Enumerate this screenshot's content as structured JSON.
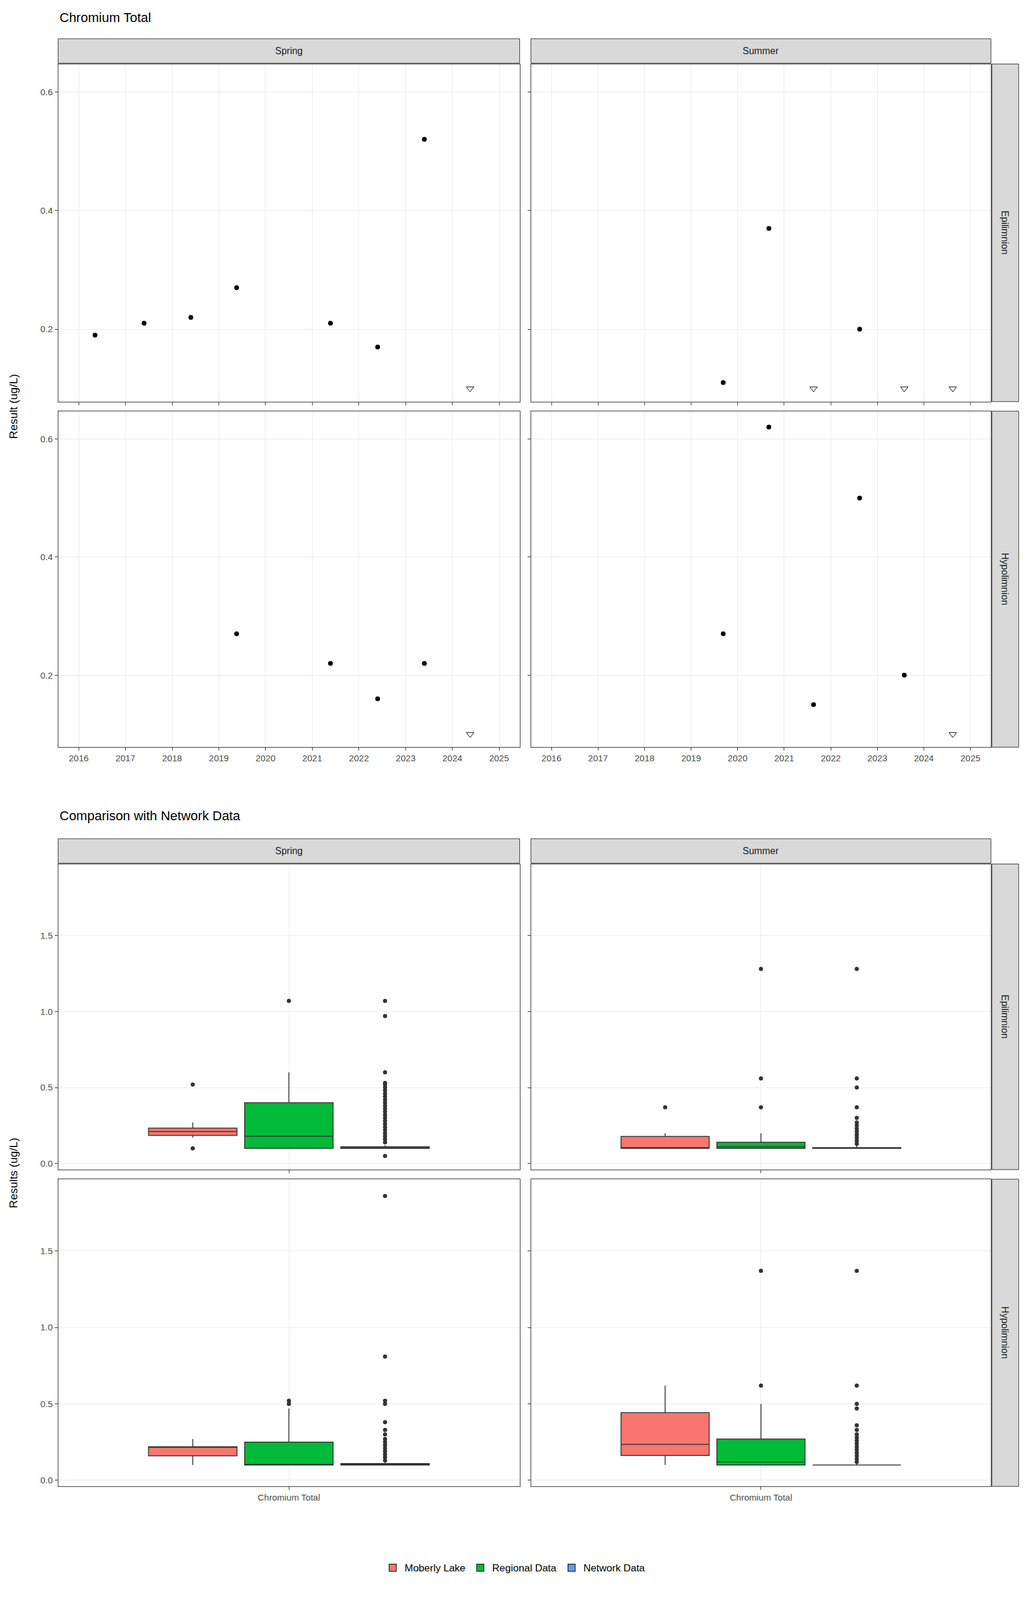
{
  "chart_data": [
    {
      "type": "scatter",
      "title": "Chromium Total",
      "y_label": "Result (ug/L)",
      "columns": [
        "Spring",
        "Summer"
      ],
      "rows": [
        "Epilimnion",
        "Hypolimnion"
      ],
      "xlim": [
        2015.56,
        2025.44
      ],
      "xticks": [
        2016,
        2017,
        2018,
        2019,
        2020,
        2021,
        2022,
        2023,
        2024,
        2025
      ],
      "ylim": [
        0.078,
        0.647
      ],
      "yticks": [
        0.2,
        0.4,
        0.6
      ],
      "grid": true,
      "panels": [
        {
          "column": "Spring",
          "row": "Epilimnion",
          "series": [
            {
              "marker": "circle",
              "color": "#000000",
              "x": [
                2016.35,
                2017.4,
                2018.4,
                2019.38,
                2021.39,
                2022.4,
                2023.4
              ],
              "values": [
                0.19,
                0.21,
                0.22,
                0.27,
                0.21,
                0.17,
                0.52
              ]
            },
            {
              "marker": "triangle-down-open",
              "color": "#000000",
              "x": [
                2024.38
              ],
              "values": [
                0.1
              ]
            }
          ]
        },
        {
          "column": "Summer",
          "row": "Epilimnion",
          "series": [
            {
              "marker": "circle",
              "color": "#000000",
              "x": [
                2019.69,
                2020.67,
                2022.62
              ],
              "values": [
                0.11,
                0.37,
                0.2
              ]
            },
            {
              "marker": "triangle-down-open",
              "color": "#000000",
              "x": [
                2021.63,
                2023.58,
                2024.62
              ],
              "values": [
                0.1,
                0.1,
                0.1
              ]
            }
          ]
        },
        {
          "column": "Spring",
          "row": "Hypolimnion",
          "series": [
            {
              "marker": "circle",
              "color": "#000000",
              "x": [
                2019.38,
                2021.39,
                2022.4,
                2023.4
              ],
              "values": [
                0.27,
                0.22,
                0.16,
                0.22
              ]
            },
            {
              "marker": "triangle-down-open",
              "color": "#000000",
              "x": [
                2024.38
              ],
              "values": [
                0.1
              ]
            }
          ]
        },
        {
          "column": "Summer",
          "row": "Hypolimnion",
          "series": [
            {
              "marker": "circle",
              "color": "#000000",
              "x": [
                2019.69,
                2020.67,
                2021.63,
                2022.62,
                2023.58
              ],
              "values": [
                0.27,
                0.62,
                0.15,
                0.5,
                0.2
              ]
            },
            {
              "marker": "triangle-down-open",
              "color": "#000000",
              "x": [
                2024.62
              ],
              "values": [
                0.1
              ]
            }
          ]
        }
      ]
    },
    {
      "type": "box",
      "title": "Comparison with Network Data",
      "y_label": "Results (ug/L)",
      "categories": [
        "Chromium Total"
      ],
      "columns": [
        "Spring",
        "Summer"
      ],
      "rows": [
        "Epilimnion",
        "Hypolimnion"
      ],
      "ylim": [
        -0.04,
        1.97
      ],
      "yticks": [
        {
          "value": 0,
          "label": "0.0"
        },
        0.5,
        {
          "value": 1,
          "label": "1.0"
        },
        1.5
      ],
      "grid": true,
      "legend": "bottom",
      "series": [
        {
          "name": "Moberly Lake",
          "color": "#F8766D"
        },
        {
          "name": "Regional Data",
          "color": "#00BA38"
        },
        {
          "name": "Network Data",
          "color": "#619CFF"
        }
      ],
      "panels": [
        {
          "column": "Spring",
          "row": "Epilimnion",
          "boxes": [
            {
              "series": "Moberly Lake",
              "q1": 0.185,
              "median": 0.21,
              "q3": 0.2325,
              "lower": 0.17,
              "upper": 0.27,
              "outliers": [
                0.1,
                0.52
              ]
            },
            {
              "series": "Regional Data",
              "q1": 0.1,
              "median": 0.18,
              "q3": 0.4,
              "lower": 0.1,
              "upper": 0.6,
              "outliers": [
                1.07
              ]
            },
            {
              "series": "Network Data",
              "q1": 0.1,
              "median": 0.1,
              "q3": 0.11,
              "lower": 0.1,
              "upper": 0.12,
              "outliers": [
                0.05,
                0.14,
                0.16,
                0.18,
                0.2,
                0.22,
                0.24,
                0.26,
                0.28,
                0.3,
                0.32,
                0.34,
                0.36,
                0.38,
                0.4,
                0.42,
                0.44,
                0.46,
                0.48,
                0.5,
                0.52,
                0.53,
                0.6,
                0.97,
                1.07
              ]
            }
          ]
        },
        {
          "column": "Summer",
          "row": "Epilimnion",
          "boxes": [
            {
              "series": "Moberly Lake",
              "q1": 0.1,
              "median": 0.105,
              "q3": 0.1775,
              "lower": 0.1,
              "upper": 0.2,
              "outliers": [
                0.37
              ]
            },
            {
              "series": "Regional Data",
              "q1": 0.1,
              "median": 0.11,
              "q3": 0.14,
              "lower": 0.1,
              "upper": 0.2,
              "outliers": [
                0.37,
                0.56,
                1.28
              ]
            },
            {
              "series": "Network Data",
              "q1": 0.1,
              "median": 0.1,
              "q3": 0.105,
              "lower": 0.1,
              "upper": 0.12,
              "outliers": [
                0.13,
                0.15,
                0.17,
                0.19,
                0.21,
                0.23,
                0.25,
                0.27,
                0.3,
                0.37,
                0.5,
                0.56,
                1.28
              ]
            }
          ]
        },
        {
          "column": "Spring",
          "row": "Hypolimnion",
          "boxes": [
            {
              "series": "Moberly Lake",
              "q1": 0.16,
              "median": 0.22,
              "q3": 0.22,
              "lower": 0.1,
              "upper": 0.27,
              "outliers": []
            },
            {
              "series": "Regional Data",
              "q1": 0.1,
              "median": 0.1,
              "q3": 0.25,
              "lower": 0.1,
              "upper": 0.47,
              "outliers": [
                0.5,
                0.52
              ]
            },
            {
              "series": "Network Data",
              "q1": 0.1,
              "median": 0.1,
              "q3": 0.11,
              "lower": 0.1,
              "upper": 0.12,
              "outliers": [
                0.13,
                0.15,
                0.17,
                0.19,
                0.21,
                0.23,
                0.25,
                0.27,
                0.3,
                0.33,
                0.38,
                0.5,
                0.52,
                0.81,
                1.86
              ]
            }
          ]
        },
        {
          "column": "Summer",
          "row": "Hypolimnion",
          "boxes": [
            {
              "series": "Moberly Lake",
              "q1": 0.1625,
              "median": 0.235,
              "q3": 0.4425,
              "lower": 0.1,
              "upper": 0.62,
              "outliers": []
            },
            {
              "series": "Regional Data",
              "q1": 0.1,
              "median": 0.12,
              "q3": 0.27,
              "lower": 0.1,
              "upper": 0.5,
              "outliers": [
                0.62,
                1.37
              ]
            },
            {
              "series": "Network Data",
              "q1": 0.1,
              "median": 0.1,
              "q3": 0.1,
              "lower": 0.1,
              "upper": 0.11,
              "outliers": [
                0.12,
                0.14,
                0.16,
                0.18,
                0.2,
                0.22,
                0.24,
                0.26,
                0.28,
                0.3,
                0.33,
                0.36,
                0.47,
                0.5,
                0.62,
                1.37
              ]
            }
          ]
        }
      ]
    }
  ]
}
